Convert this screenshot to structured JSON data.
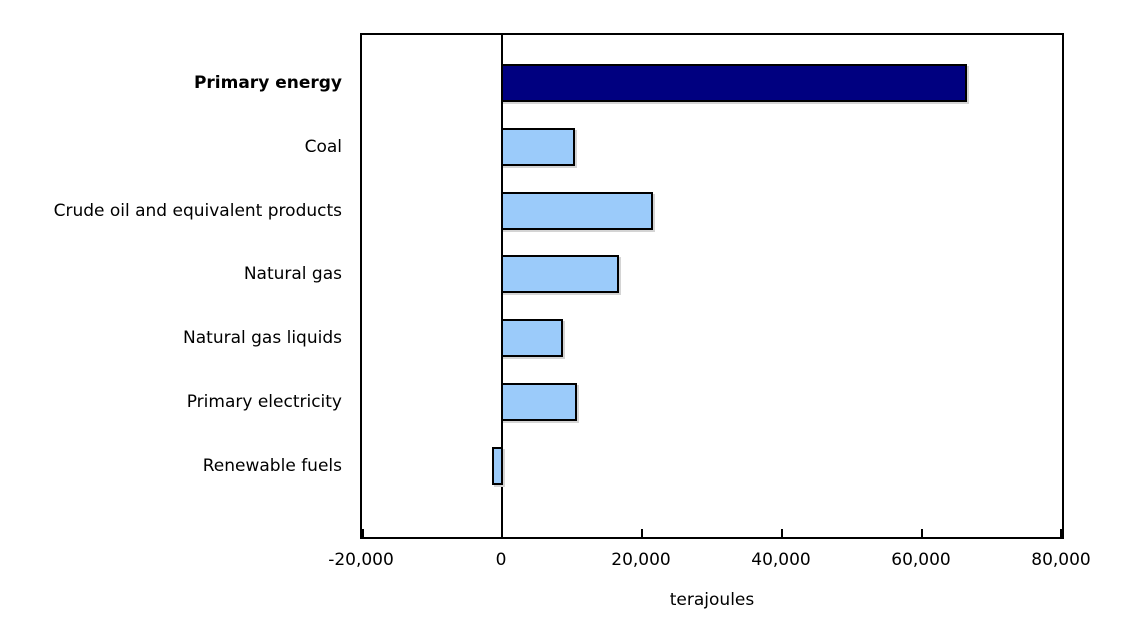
{
  "chart_data": {
    "type": "bar",
    "orientation": "horizontal",
    "categories": [
      "Primary energy",
      "Coal",
      "Crude oil and equivalent products",
      "Natural gas",
      "Natural gas liquids",
      "Primary electricity",
      "Renewable fuels"
    ],
    "values": [
      66500,
      10600,
      21700,
      16800,
      8800,
      10900,
      -1600
    ],
    "bold_categories": [
      "Primary energy"
    ],
    "highlight_category": "Primary energy",
    "title": "",
    "xlabel": "terajoules",
    "ylabel": "",
    "xlim": [
      -20000,
      80000
    ],
    "xticks": [
      -20000,
      0,
      20000,
      40000,
      60000,
      80000
    ],
    "xtick_labels": [
      "-20,000",
      "0",
      "20,000",
      "40,000",
      "60,000",
      "80,000"
    ],
    "grid": false,
    "legend": false,
    "colors": {
      "highlight_bar": "#000080",
      "default_bar": "#9BCBFA",
      "bar_border": "#000000",
      "axis": "#000000",
      "text": "#000000",
      "background": "#FFFFFF"
    }
  }
}
